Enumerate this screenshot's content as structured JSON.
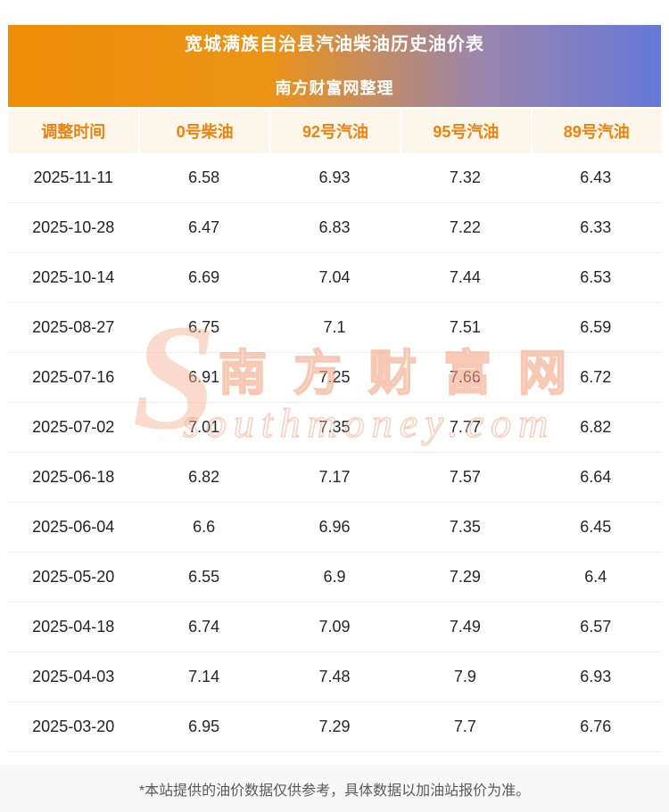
{
  "header": {
    "title": "宽城满族自治县汽油柴油历史油价表",
    "subtitle": "南方财富网整理"
  },
  "chart_data": {
    "type": "table",
    "title": "宽城满族自治县汽油柴油历史油价表",
    "columns": [
      "调整时间",
      "0号柴油",
      "92号汽油",
      "95号汽油",
      "89号汽油"
    ],
    "rows": [
      [
        "2025-11-11",
        "6.58",
        "6.93",
        "7.32",
        "6.43"
      ],
      [
        "2025-10-28",
        "6.47",
        "6.83",
        "7.22",
        "6.33"
      ],
      [
        "2025-10-14",
        "6.69",
        "7.04",
        "7.44",
        "6.53"
      ],
      [
        "2025-08-27",
        "6.75",
        "7.1",
        "7.51",
        "6.59"
      ],
      [
        "2025-07-16",
        "6.91",
        "7.25",
        "7.66",
        "6.72"
      ],
      [
        "2025-07-02",
        "7.01",
        "7.35",
        "7.77",
        "6.82"
      ],
      [
        "2025-06-18",
        "6.82",
        "7.17",
        "7.57",
        "6.64"
      ],
      [
        "2025-06-04",
        "6.6",
        "6.96",
        "7.35",
        "6.45"
      ],
      [
        "2025-05-20",
        "6.55",
        "6.9",
        "7.29",
        "6.4"
      ],
      [
        "2025-04-18",
        "6.74",
        "7.09",
        "7.49",
        "6.57"
      ],
      [
        "2025-04-03",
        "7.14",
        "7.48",
        "7.9",
        "6.93"
      ],
      [
        "2025-03-20",
        "6.95",
        "7.29",
        "7.7",
        "6.76"
      ]
    ]
  },
  "watermark": {
    "logo_letter": "S",
    "brand": "南方财富网",
    "domain": "southmoney.com"
  },
  "footer": {
    "note": "*本站提供的油价数据仅供参考，具体数据以加油站报价为准。"
  },
  "colors": {
    "banner_gradient_left": "#ee8d05",
    "banner_gradient_right": "#6578d8",
    "table_header_text": "#ec8311",
    "table_header_bg": "#fdf6ea",
    "row_divider": "#f0f0f0",
    "footer_bg": "#f7f7f7",
    "watermark": "#f4b08c"
  }
}
